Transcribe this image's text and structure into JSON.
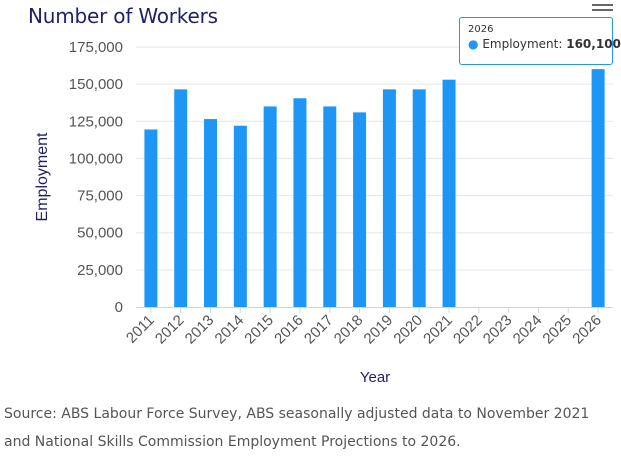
{
  "chart_data": {
    "type": "bar",
    "title": "Number of Workers",
    "xlabel": "Year",
    "ylabel": "Employment",
    "categories": [
      "2011",
      "2012",
      "2013",
      "2014",
      "2015",
      "2016",
      "2017",
      "2018",
      "2019",
      "2020",
      "2021",
      "2022",
      "2023",
      "2024",
      "2025",
      "2026"
    ],
    "series": [
      {
        "name": "Employment",
        "values": [
          119500,
          146500,
          126500,
          122000,
          135000,
          140500,
          135000,
          131000,
          146500,
          146500,
          153000,
          null,
          null,
          null,
          null,
          160100
        ]
      }
    ],
    "ylim": [
      0,
      175000
    ],
    "yticks": [
      "0",
      "25,000",
      "50,000",
      "75,000",
      "100,000",
      "125,000",
      "150,000",
      "175,000"
    ],
    "grid": true,
    "bar_color": "#1e96f6"
  },
  "tooltip": {
    "x": "2026",
    "series_label": "Employment:",
    "value": "160,100"
  },
  "source_text": "Source: ABS Labour Force Survey, ABS seasonally adjusted data to November 2021 and National Skills Commission Employment Projections to 2026."
}
